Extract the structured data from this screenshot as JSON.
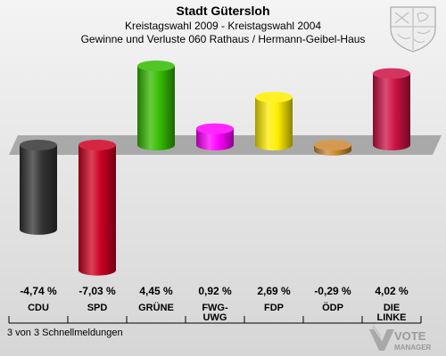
{
  "chart_data": {
    "type": "bar",
    "title": "Stadt Gütersloh",
    "subtitle_1": "Kreistagswahl 2009 - Kreistagswahl 2004",
    "subtitle_2": "Gewinne und Verluste 060 Rathaus / Hermann-Geibel-Haus",
    "categories": [
      "CDU",
      "SPD",
      "GRÜNE",
      "FWG-\nUWG",
      "FDP",
      "ÖDP",
      "DIE\nLINKE"
    ],
    "values": [
      -4.74,
      -7.03,
      4.45,
      0.92,
      2.69,
      -0.29,
      4.02
    ],
    "value_labels": [
      "-4,74 %",
      "-7,03 %",
      "4,45 %",
      "0,92 %",
      "2,69 %",
      "-0,29 %",
      "4,02 %"
    ],
    "colors": [
      "#333333",
      "#cc0022",
      "#33bb00",
      "#ff00ff",
      "#ffee00",
      "#cc8833",
      "#cc1144"
    ]
  },
  "footer": "3 von 3 Schnellmeldungen",
  "logo": {
    "line1": "VOTE",
    "line2": "MANAGER"
  },
  "icons": {
    "crest": "coat-of-arms-icon",
    "logo": "vote-manager-logo"
  }
}
